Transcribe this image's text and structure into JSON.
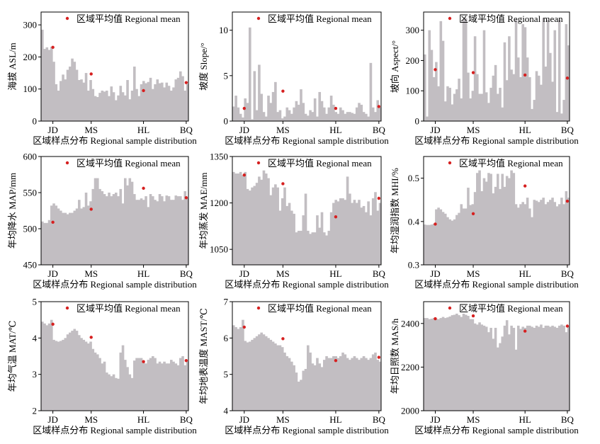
{
  "legend_label": "区域平均值 Regional mean",
  "xlabel": "区域样点分布 Regional sample distribution",
  "colors": {
    "bar": "#c2bec2",
    "mean": "#d62020",
    "axis": "#000000"
  },
  "chart_data": [
    {
      "type": "bar",
      "title": "",
      "ylabel": "海拔 ASL/m",
      "ylim": [
        0,
        340
      ],
      "yticks": [
        0,
        100,
        200,
        300
      ],
      "region_labels": [
        "JD",
        "MS",
        "HL",
        "BQ"
      ],
      "values": [
        285,
        225,
        230,
        222,
        232,
        185,
        115,
        95,
        125,
        145,
        130,
        160,
        170,
        195,
        185,
        160,
        128,
        130,
        120,
        150,
        95,
        128,
        100,
        78,
        75,
        88,
        95,
        92,
        95,
        78,
        108,
        90,
        65,
        80,
        110,
        90,
        80,
        128,
        68,
        95,
        170,
        100,
        78,
        115,
        125,
        118,
        122,
        135,
        100,
        115,
        130,
        118,
        120,
        105,
        120,
        110,
        95,
        105,
        130,
        135,
        155,
        140,
        95,
        115
      ],
      "means": [
        230,
        147,
        95,
        120
      ]
    },
    {
      "type": "bar",
      "title": "",
      "ylabel": "坡度 Slope/°",
      "ylim": [
        0,
        12
      ],
      "yticks": [
        0,
        5,
        10
      ],
      "region_labels": [
        "JD",
        "MS",
        "HL",
        "BQ"
      ],
      "values": [
        1.6,
        2.8,
        1.5,
        0.8,
        0.4,
        2.5,
        2.0,
        10.3,
        0.2,
        5.5,
        1.2,
        6.2,
        3.0,
        1.0,
        0.5,
        2.8,
        2.0,
        3.2,
        4.3,
        1.0,
        1.2,
        0.3,
        0.5,
        1.5,
        1.2,
        0.8,
        1.5,
        2.2,
        1.8,
        3.5,
        2.0,
        0.8,
        0.6,
        1.2,
        1.0,
        2.5,
        0.5,
        3.2,
        2.2,
        1.5,
        0.8,
        1.5,
        2.8,
        1.8,
        1.0,
        0.8,
        1.5,
        1.2,
        0.8,
        1.0,
        1.0,
        0.9,
        0.8,
        1.5,
        2.0,
        1.8,
        1.0,
        0.8,
        0.5,
        6.4,
        1.5,
        1.0,
        2.3,
        1.5
      ],
      "means": [
        1.4,
        3.3,
        1.4,
        1.6
      ]
    },
    {
      "type": "bar",
      "title": "",
      "ylabel": "坡向 Aspect/°",
      "ylim": [
        0,
        360
      ],
      "yticks": [
        0,
        100,
        200,
        300
      ],
      "region_labels": [
        "JD",
        "MS",
        "HL",
        "BQ"
      ],
      "values": [
        220,
        15,
        300,
        235,
        145,
        195,
        115,
        330,
        265,
        65,
        115,
        110,
        55,
        90,
        105,
        140,
        75,
        335,
        340,
        160,
        75,
        100,
        280,
        155,
        90,
        90,
        300,
        95,
        60,
        110,
        150,
        185,
        90,
        110,
        45,
        260,
        135,
        280,
        170,
        155,
        335,
        210,
        145,
        320,
        310,
        210,
        145,
        40,
        70,
        165,
        150,
        120,
        340,
        180,
        335,
        225,
        130,
        300,
        30,
        335,
        25,
        70,
        320,
        250
      ],
      "means": [
        170,
        160,
        152,
        142
      ]
    },
    {
      "type": "bar",
      "title": "",
      "ylabel": "年均降水 MAP/mm",
      "ylim": [
        450,
        600
      ],
      "yticks": [
        450,
        500,
        550,
        600
      ],
      "region_labels": [
        "JD",
        "MS",
        "HL",
        "BQ"
      ],
      "values": [
        510,
        508,
        508,
        512,
        532,
        535,
        532,
        528,
        525,
        522,
        522,
        520,
        522,
        522,
        525,
        528,
        540,
        528,
        530,
        550,
        532,
        538,
        555,
        570,
        570,
        555,
        552,
        548,
        545,
        550,
        545,
        548,
        550,
        545,
        555,
        535,
        570,
        560,
        570,
        565,
        548,
        540,
        540,
        542,
        540,
        545,
        530,
        548,
        545,
        540,
        538,
        548,
        545,
        538,
        546,
        545,
        540,
        540,
        546,
        545,
        545,
        540,
        552,
        542
      ],
      "means": [
        509,
        527,
        556,
        543
      ]
    },
    {
      "type": "bar",
      "title": "",
      "ylabel": "年均蒸发 MAE/mm",
      "ylim": [
        1000,
        1350
      ],
      "yticks": [
        1050,
        1200,
        1350
      ],
      "region_labels": [
        "JD",
        "MS",
        "HL",
        "BQ"
      ],
      "values": [
        1300,
        1295,
        1295,
        1300,
        1290,
        1300,
        1245,
        1240,
        1250,
        1255,
        1265,
        1285,
        1275,
        1305,
        1295,
        1280,
        1225,
        1250,
        1260,
        1250,
        1175,
        1215,
        1250,
        1190,
        1200,
        1175,
        1165,
        1105,
        1110,
        1110,
        1160,
        1230,
        1110,
        1100,
        1105,
        1105,
        1160,
        1120,
        1170,
        1105,
        1095,
        1110,
        1170,
        1200,
        1210,
        1205,
        1215,
        1215,
        1210,
        1285,
        1230,
        1200,
        1210,
        1200,
        1210,
        1185,
        1190,
        1170,
        1205,
        1160,
        1215,
        1235,
        1175,
        1200
      ],
      "means": [
        1290,
        1262,
        1155,
        1215
      ]
    },
    {
      "type": "bar",
      "title": "",
      "ylabel": "年均湿润指数 MHI/%",
      "ylim": [
        0.3,
        0.55
      ],
      "yticks": [
        0.3,
        0.4,
        0.5
      ],
      "region_labels": [
        "JD",
        "MS",
        "HL",
        "BQ"
      ],
      "values": [
        0.393,
        0.392,
        0.392,
        0.393,
        0.395,
        0.428,
        0.432,
        0.428,
        0.422,
        0.418,
        0.41,
        0.405,
        0.402,
        0.405,
        0.415,
        0.42,
        0.44,
        0.43,
        0.43,
        0.478,
        0.438,
        0.44,
        0.468,
        0.512,
        0.518,
        0.47,
        0.5,
        0.492,
        0.512,
        0.51,
        0.465,
        0.48,
        0.51,
        0.475,
        0.51,
        0.48,
        0.505,
        0.5,
        0.518,
        0.512,
        0.44,
        0.432,
        0.44,
        0.445,
        0.44,
        0.455,
        0.43,
        0.41,
        0.45,
        0.448,
        0.445,
        0.45,
        0.455,
        0.44,
        0.445,
        0.45,
        0.455,
        0.445,
        0.435,
        0.44,
        0.455,
        0.44,
        0.47,
        0.455
      ],
      "means": [
        0.394,
        0.418,
        0.482,
        0.447
      ]
    },
    {
      "type": "bar",
      "title": "",
      "ylabel": "年均气温 MAT/℃",
      "ylim": [
        2,
        5
      ],
      "yticks": [
        2,
        3,
        4,
        5
      ],
      "region_labels": [
        "JD",
        "MS",
        "HL",
        "BQ"
      ],
      "values": [
        4.45,
        4.4,
        4.35,
        4.4,
        4.5,
        3.95,
        3.92,
        3.9,
        3.92,
        3.95,
        4.0,
        4.1,
        4.15,
        4.2,
        4.25,
        4.2,
        4.08,
        4.0,
        3.95,
        3.9,
        3.85,
        3.9,
        3.7,
        3.6,
        3.55,
        3.45,
        3.3,
        3.35,
        3.05,
        3.0,
        2.95,
        3.0,
        2.9,
        2.88,
        3.6,
        3.8,
        3.4,
        3.2,
        3.0,
        2.9,
        3.38,
        3.45,
        3.45,
        3.45,
        3.38,
        3.3,
        3.4,
        3.45,
        3.5,
        3.45,
        3.3,
        3.35,
        3.3,
        3.35,
        3.3,
        3.3,
        3.4,
        3.35,
        3.3,
        3.25,
        3.45,
        3.5,
        3.25,
        3.35
      ],
      "means": [
        4.38,
        4.02,
        3.35,
        3.38
      ]
    },
    {
      "type": "bar",
      "title": "",
      "ylabel": "年均地表温度 MAST/℃",
      "ylim": [
        4,
        7
      ],
      "yticks": [
        4,
        5,
        6,
        7
      ],
      "region_labels": [
        "JD",
        "MS",
        "HL",
        "BQ"
      ],
      "values": [
        6.35,
        6.3,
        6.25,
        6.3,
        6.5,
        5.92,
        5.88,
        5.9,
        5.95,
        6.0,
        6.05,
        6.1,
        6.15,
        6.1,
        6.05,
        6.0,
        5.95,
        5.9,
        5.85,
        5.8,
        5.8,
        5.75,
        5.6,
        5.5,
        5.45,
        5.35,
        5.25,
        5.05,
        4.8,
        4.85,
        5.1,
        5.15,
        5.8,
        5.6,
        5.3,
        5.25,
        5.45,
        5.3,
        5.2,
        5.4,
        5.5,
        5.45,
        5.45,
        5.5,
        5.5,
        5.45,
        5.5,
        5.6,
        5.55,
        5.45,
        5.4,
        5.45,
        5.5,
        5.45,
        5.4,
        5.45,
        5.5,
        5.45,
        5.4,
        5.45,
        5.55,
        5.6,
        5.4,
        5.35
      ],
      "means": [
        6.3,
        5.98,
        5.38,
        5.47
      ]
    },
    {
      "type": "bar",
      "title": "",
      "ylabel": "年均日照数 MAS/h",
      "ylim": [
        2000,
        2500
      ],
      "yticks": [
        2000,
        2200,
        2400
      ],
      "region_labels": [
        "JD",
        "MS",
        "HL",
        "BQ"
      ],
      "values": [
        2425,
        2425,
        2420,
        2422,
        2425,
        2422,
        2420,
        2425,
        2430,
        2425,
        2428,
        2432,
        2438,
        2440,
        2445,
        2438,
        2430,
        2445,
        2440,
        2435,
        2420,
        2420,
        2400,
        2395,
        2405,
        2395,
        2390,
        2385,
        2360,
        2380,
        2330,
        2380,
        2290,
        2310,
        2340,
        2390,
        2415,
        2350,
        2390,
        2380,
        2280,
        2390,
        2375,
        2385,
        2380,
        2390,
        2390,
        2385,
        2380,
        2390,
        2385,
        2395,
        2380,
        2390,
        2390,
        2385,
        2390,
        2385,
        2380,
        2390,
        2395,
        2390,
        2360,
        2385
      ],
      "means": [
        2422,
        2435,
        2365,
        2388
      ]
    }
  ]
}
